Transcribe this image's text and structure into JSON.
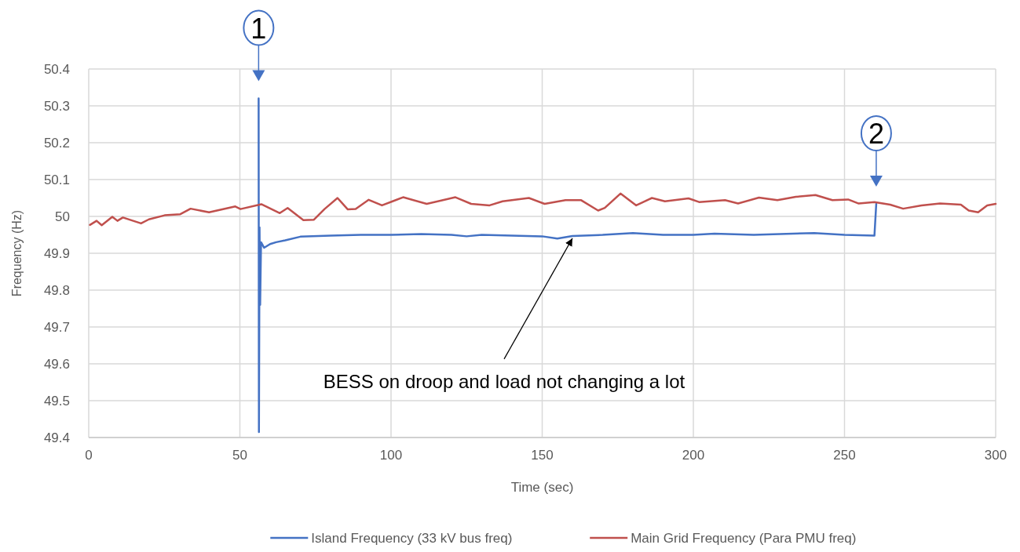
{
  "chart_data": {
    "type": "line",
    "xlabel": "Time (sec)",
    "ylabel": "Frequency (Hz)",
    "xlim": [
      0,
      300
    ],
    "xticks": [
      0,
      50,
      100,
      150,
      200,
      250,
      300
    ],
    "ylim": [
      49.4,
      50.4
    ],
    "yticks": [
      49.4,
      49.5,
      49.6,
      49.7,
      49.8,
      49.9,
      50,
      50.1,
      50.2,
      50.3,
      50.4
    ],
    "grid": true,
    "legend": "bottom",
    "line_style": "solid",
    "marker": "none",
    "series": [
      {
        "name": "Island Frequency (33 kV bus freq)",
        "color": "#4472c4",
        "x": [
          56.2,
          56.3,
          56.5,
          56.7,
          57,
          58,
          60,
          62,
          65,
          70,
          80,
          90,
          100,
          110,
          120,
          125,
          130,
          140,
          150,
          155,
          160,
          170,
          180,
          190,
          200,
          207,
          220,
          240,
          250,
          259.9,
          260.5
        ],
        "values": [
          50.32,
          49.415,
          49.97,
          49.76,
          49.93,
          49.915,
          49.925,
          49.93,
          49.935,
          49.945,
          49.948,
          49.95,
          49.95,
          49.952,
          49.95,
          49.946,
          49.95,
          49.948,
          49.946,
          49.94,
          49.947,
          49.95,
          49.955,
          49.95,
          49.95,
          49.953,
          49.95,
          49.955,
          49.95,
          49.948,
          50.034
        ]
      },
      {
        "name": "Main Grid Frequency (Para PMU freq)",
        "color": "#c0504d",
        "x": [
          0.4,
          2.6,
          4.3,
          7.8,
          9.5,
          11.3,
          17.3,
          19.9,
          25.1,
          30.3,
          33.7,
          39.8,
          48.5,
          50.2,
          57.1,
          63.2,
          65.8,
          71,
          74.5,
          78,
          82.3,
          85.7,
          88.3,
          92.6,
          97,
          100.5,
          104,
          111.8,
          121.3,
          126.5,
          132.6,
          136.9,
          145.6,
          150.8,
          157.7,
          162.9,
          168.5,
          170.7,
          175.9,
          181.1,
          186.3,
          190.6,
          198.4,
          201.9,
          210.5,
          214.8,
          221.7,
          227.8,
          233.9,
          240.4,
          246,
          251.2,
          254.7,
          259.9,
          265.1,
          269.4,
          275.5,
          281.6,
          288.5,
          291.1,
          294.2,
          297.2,
          300
        ],
        "values": [
          49.977,
          49.988,
          49.976,
          49.999,
          49.988,
          49.997,
          49.981,
          49.992,
          50.003,
          50.006,
          50.021,
          50.011,
          50.027,
          50.02,
          50.033,
          50.009,
          50.023,
          49.99,
          49.991,
          50.02,
          50.05,
          50.019,
          50.02,
          50.045,
          50.03,
          50.041,
          50.052,
          50.034,
          50.052,
          50.034,
          50.03,
          50.041,
          50.05,
          50.034,
          50.044,
          50.044,
          50.016,
          50.023,
          50.062,
          50.03,
          50.05,
          50.041,
          50.049,
          50.039,
          50.044,
          50.035,
          50.051,
          50.044,
          50.053,
          50.058,
          50.044,
          50.046,
          50.035,
          50.039,
          50.032,
          50.021,
          50.03,
          50.035,
          50.032,
          50.016,
          50.011,
          50.03,
          50.034
        ]
      }
    ],
    "annotations": [
      {
        "text": "1",
        "x": 56.2,
        "y": 50.32
      },
      {
        "text": "2",
        "x": 260.5,
        "y": 50.034
      },
      {
        "text": "BESS on droop and load not changing a lot",
        "x": 160,
        "y": 49.947
      }
    ]
  }
}
